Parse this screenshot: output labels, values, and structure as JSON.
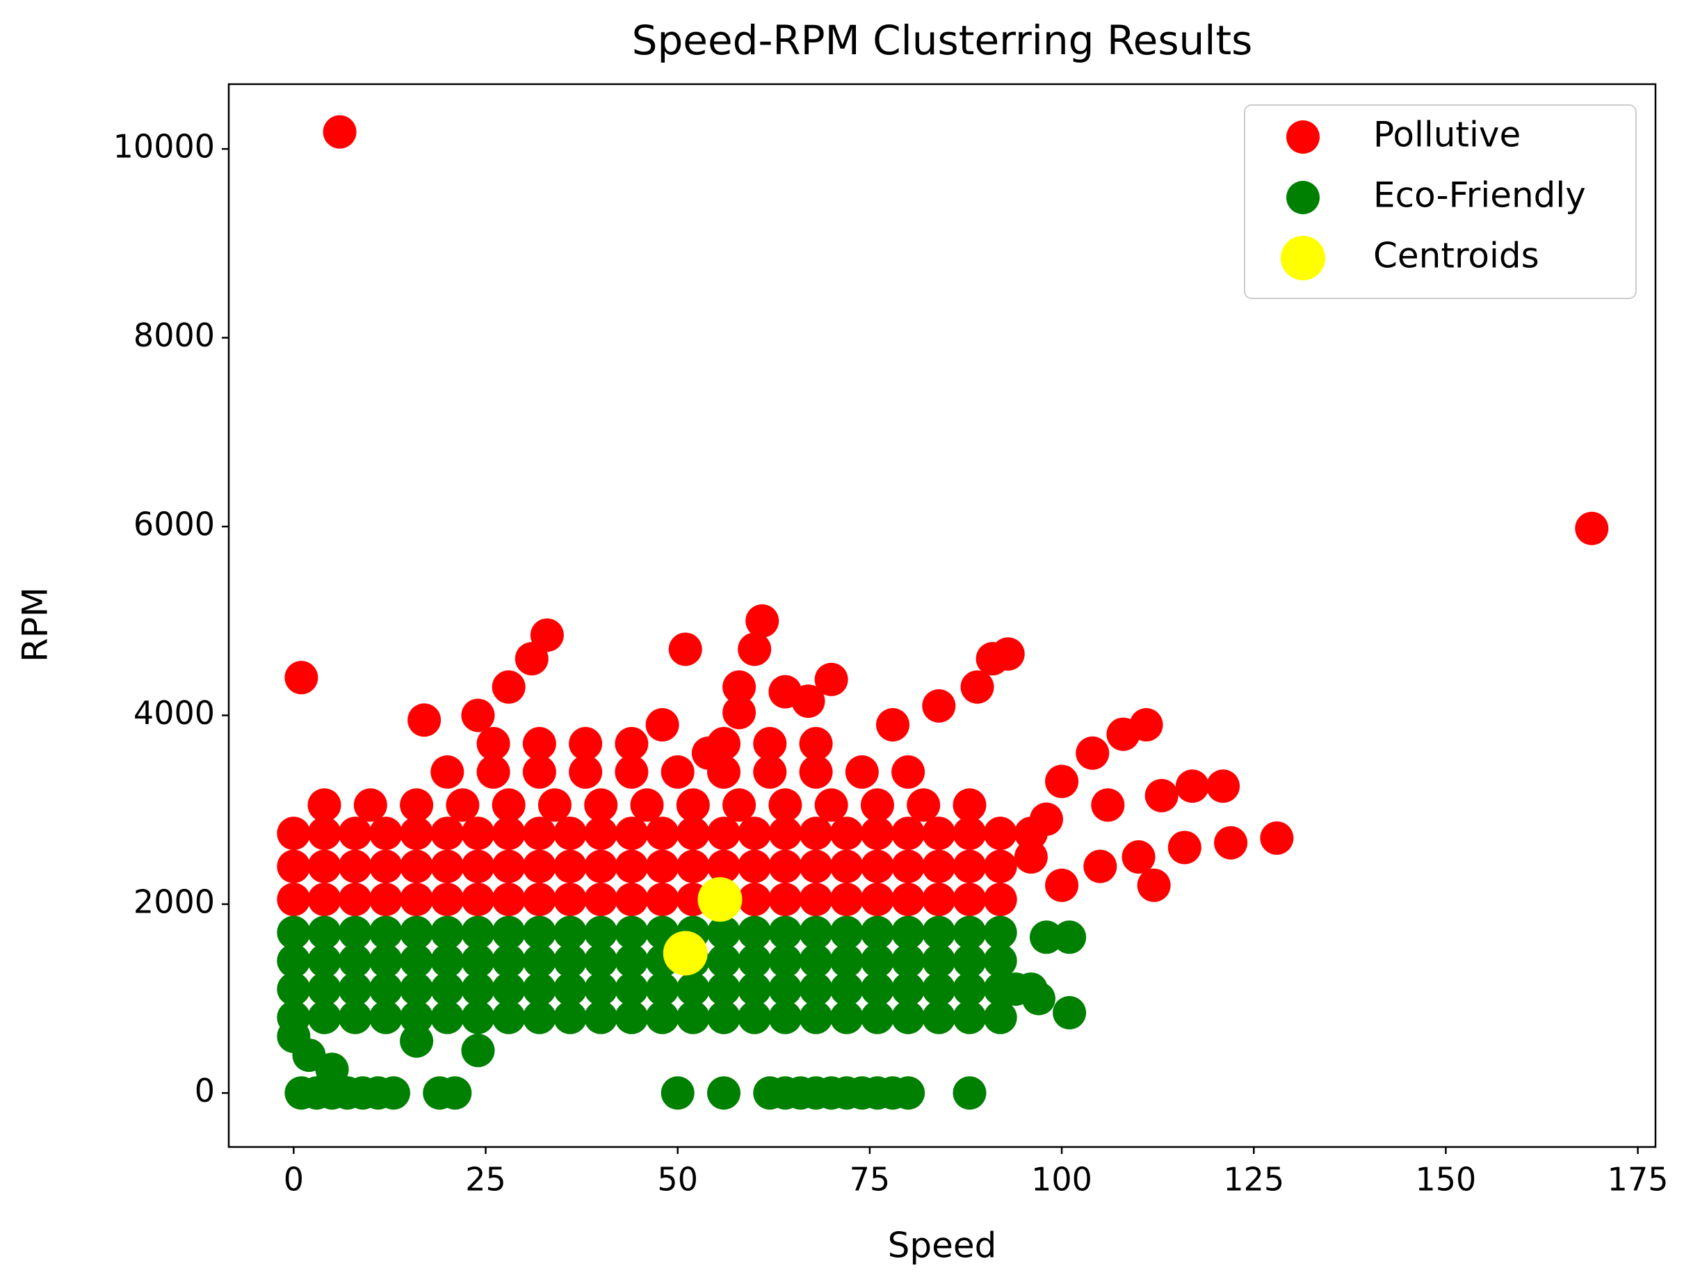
{
  "chart_data": {
    "type": "scatter",
    "title": "Speed-RPM Clusterring Results",
    "x_label": "Speed",
    "y_label": "RPM",
    "xlim": [
      -8.45,
      177.3
    ],
    "ylim": [
      -572,
      10686
    ],
    "xticks": [
      0,
      25,
      50,
      75,
      100,
      125,
      150,
      175
    ],
    "yticks": [
      0,
      2000,
      4000,
      6000,
      8000,
      10000
    ],
    "grid": false,
    "legend": "upper right",
    "series": [
      {
        "name": "Pollutive",
        "color": "#ff0000",
        "size": 24,
        "x": [
          0,
          4,
          8,
          12,
          16,
          20,
          24,
          28,
          32,
          36,
          40,
          44,
          48,
          52,
          56,
          60,
          64,
          68,
          72,
          76,
          80,
          84,
          88,
          92,
          0,
          4,
          8,
          12,
          16,
          20,
          24,
          28,
          32,
          36,
          40,
          44,
          48,
          52,
          56,
          60,
          64,
          68,
          72,
          76,
          80,
          84,
          88,
          92,
          0,
          4,
          8,
          12,
          16,
          20,
          24,
          28,
          32,
          36,
          40,
          44,
          48,
          52,
          56,
          60,
          64,
          68,
          72,
          76,
          80,
          84,
          88,
          92,
          96,
          4,
          10,
          16,
          22,
          28,
          34,
          40,
          46,
          52,
          58,
          64,
          70,
          76,
          82,
          88,
          20,
          26,
          32,
          38,
          44,
          50,
          56,
          62,
          68,
          74,
          80,
          26,
          32,
          38,
          44,
          56,
          62,
          68,
          24,
          28,
          31,
          33,
          58,
          60,
          61,
          78,
          84,
          89,
          93,
          91,
          100,
          104,
          108,
          111,
          98,
          106,
          113,
          121,
          117,
          100,
          105,
          110,
          116,
          122,
          128,
          112,
          96,
          1,
          17,
          6,
          169,
          51,
          64,
          70,
          67,
          58,
          48,
          54
        ],
        "values": [
          2050,
          2050,
          2050,
          2050,
          2050,
          2050,
          2050,
          2050,
          2050,
          2050,
          2050,
          2050,
          2050,
          2050,
          2050,
          2050,
          2050,
          2050,
          2050,
          2050,
          2050,
          2050,
          2050,
          2050,
          2400,
          2400,
          2400,
          2400,
          2400,
          2400,
          2400,
          2400,
          2400,
          2400,
          2400,
          2400,
          2400,
          2400,
          2400,
          2400,
          2400,
          2400,
          2400,
          2400,
          2400,
          2400,
          2400,
          2400,
          2750,
          2750,
          2750,
          2750,
          2750,
          2750,
          2750,
          2750,
          2750,
          2750,
          2750,
          2750,
          2750,
          2750,
          2750,
          2750,
          2750,
          2750,
          2750,
          2750,
          2750,
          2750,
          2750,
          2750,
          2750,
          3050,
          3050,
          3050,
          3050,
          3050,
          3050,
          3050,
          3050,
          3050,
          3050,
          3050,
          3050,
          3050,
          3050,
          3050,
          3400,
          3400,
          3400,
          3400,
          3400,
          3400,
          3400,
          3400,
          3400,
          3400,
          3400,
          3700,
          3700,
          3700,
          3700,
          3700,
          3700,
          3700,
          4000,
          4300,
          4600,
          4850,
          4300,
          4700,
          5000,
          3900,
          4100,
          4300,
          4650,
          4600,
          3300,
          3600,
          3800,
          3900,
          2900,
          3050,
          3150,
          3250,
          3250,
          2200,
          2400,
          2500,
          2600,
          2650,
          2700,
          2200,
          2500,
          4400,
          3950,
          10180,
          5980,
          4700,
          4250,
          4380,
          4150,
          4030,
          3900,
          3600
        ]
      },
      {
        "name": "Eco-Friendly",
        "color": "#008000",
        "size": 24,
        "x": [
          0,
          4,
          8,
          12,
          16,
          20,
          24,
          28,
          32,
          36,
          40,
          44,
          48,
          52,
          56,
          60,
          64,
          68,
          72,
          76,
          80,
          84,
          88,
          92,
          0,
          4,
          8,
          12,
          16,
          20,
          24,
          28,
          32,
          36,
          40,
          44,
          48,
          52,
          56,
          60,
          64,
          68,
          72,
          76,
          80,
          84,
          88,
          92,
          96,
          0,
          4,
          8,
          12,
          16,
          20,
          24,
          28,
          32,
          36,
          40,
          44,
          48,
          52,
          56,
          60,
          64,
          68,
          72,
          76,
          80,
          84,
          88,
          92,
          0,
          4,
          8,
          12,
          16,
          20,
          24,
          28,
          32,
          36,
          40,
          44,
          48,
          52,
          56,
          60,
          64,
          68,
          72,
          76,
          80,
          84,
          88,
          92,
          0,
          2,
          5,
          16,
          24,
          101,
          101,
          98,
          94,
          97,
          1,
          3,
          5,
          7,
          9,
          11,
          13,
          19,
          21,
          50,
          56,
          62,
          64,
          66,
          68,
          70,
          72,
          74,
          76,
          78,
          80,
          88
        ],
        "values": [
          800,
          800,
          800,
          800,
          800,
          800,
          800,
          800,
          800,
          800,
          800,
          800,
          800,
          800,
          800,
          800,
          800,
          800,
          800,
          800,
          800,
          800,
          800,
          800,
          1100,
          1100,
          1100,
          1100,
          1100,
          1100,
          1100,
          1100,
          1100,
          1100,
          1100,
          1100,
          1100,
          1100,
          1100,
          1100,
          1100,
          1100,
          1100,
          1100,
          1100,
          1100,
          1100,
          1100,
          1100,
          1400,
          1400,
          1400,
          1400,
          1400,
          1400,
          1400,
          1400,
          1400,
          1400,
          1400,
          1400,
          1400,
          1400,
          1400,
          1400,
          1400,
          1400,
          1400,
          1400,
          1400,
          1400,
          1400,
          1400,
          1700,
          1700,
          1700,
          1700,
          1700,
          1700,
          1700,
          1700,
          1700,
          1700,
          1700,
          1700,
          1700,
          1700,
          1700,
          1700,
          1700,
          1700,
          1700,
          1700,
          1700,
          1700,
          1700,
          1700,
          600,
          400,
          250,
          550,
          450,
          850,
          1650,
          1650,
          1100,
          1000,
          0,
          0,
          0,
          0,
          0,
          0,
          0,
          0,
          0,
          0,
          0,
          0,
          0,
          0,
          0,
          0,
          0,
          0,
          0,
          0,
          0,
          0
        ]
      },
      {
        "name": "Centroids",
        "color": "#ffff00",
        "size": 32,
        "x": [
          55.5,
          51
        ],
        "values": [
          2050,
          1480
        ]
      }
    ]
  }
}
